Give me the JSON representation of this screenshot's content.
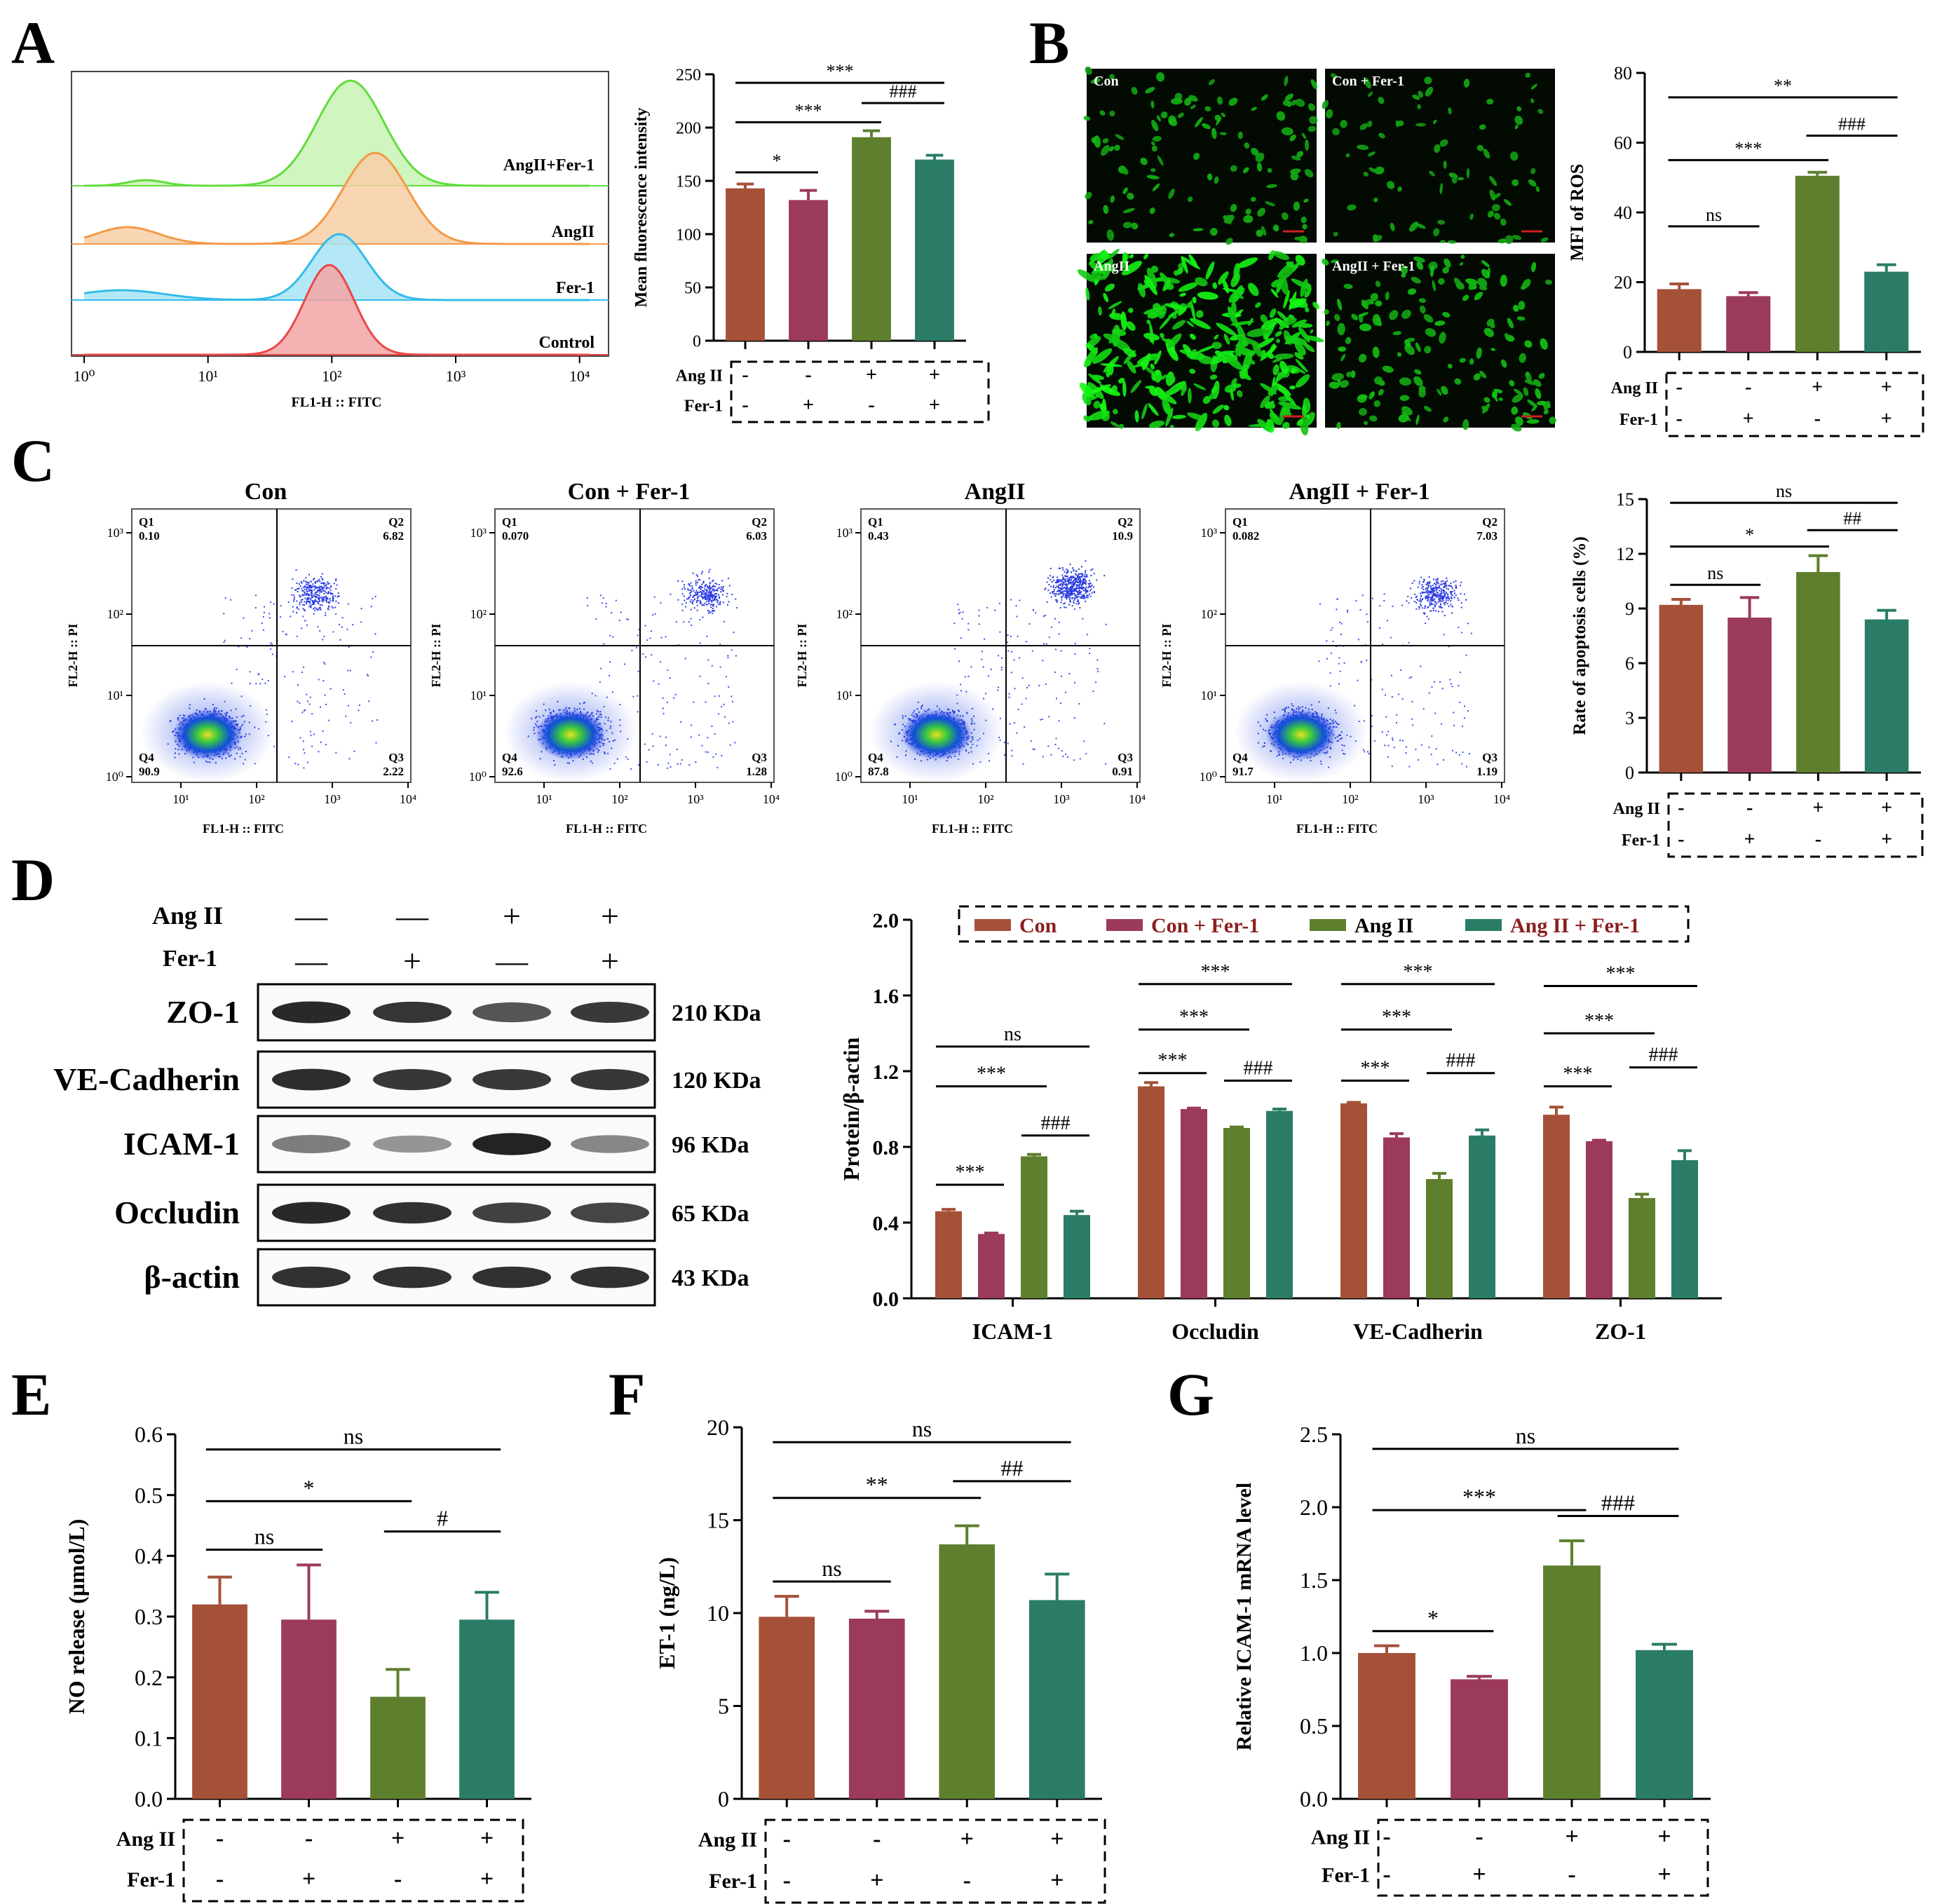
{
  "panels": {
    "A": "A",
    "B": "B",
    "C": "C",
    "D": "D",
    "E": "E",
    "F": "F",
    "G": "G"
  },
  "colors": {
    "con": "#a55138",
    "fer": "#9c3a5c",
    "ang": "#5e7f2e",
    "angfer": "#2a7c66"
  },
  "conditions": {
    "row1_label": "Ang II",
    "row2_label": "Fer-1",
    "angII": [
      "-",
      "-",
      "+",
      "+"
    ],
    "fer1": [
      "-",
      "+",
      "-",
      "+"
    ]
  },
  "panelA": {
    "histograms": [
      "AngII+Fer-1",
      "AngII",
      "Fer-1",
      "Control"
    ],
    "hist_colors": [
      "#62dc3e",
      "#f29a48",
      "#33bbe8",
      "#ea4848"
    ],
    "xaxis_label": "FL1-H :: FITC",
    "x_ticks": [
      "10⁰",
      "10¹",
      "10²",
      "10³",
      "10⁴"
    ]
  },
  "panelB": {
    "image_labels": [
      "Con",
      "Con + Fer-1",
      "AngII",
      "AngII + Fer-1"
    ]
  },
  "panelC": {
    "titles": [
      "Con",
      "Con + Fer-1",
      "AngII",
      "AngII + Fer-1"
    ],
    "quadrants": [
      {
        "q1": "0.10",
        "q2": "6.82",
        "q3": "2.22",
        "q4": "90.9"
      },
      {
        "q1": "0.070",
        "q2": "6.03",
        "q3": "1.28",
        "q4": "92.6"
      },
      {
        "q1": "0.43",
        "q2": "10.9",
        "q3": "0.91",
        "q4": "87.8"
      },
      {
        "q1": "0.082",
        "q2": "7.03",
        "q3": "1.19",
        "q4": "91.7"
      }
    ],
    "qnames": [
      "Q1",
      "Q2",
      "Q3",
      "Q4"
    ],
    "xaxis_label": "FL1-H :: FITC",
    "yaxis_label": "FL2-H :: PI",
    "x_ticks": [
      "10¹",
      "10²",
      "10³",
      "10⁴"
    ],
    "y_ticks": [
      "10⁰",
      "10¹",
      "10²",
      "10³"
    ]
  },
  "panelD_blot": {
    "lanes_angII": [
      "—",
      "—",
      "+",
      "+"
    ],
    "lanes_fer1": [
      "—",
      "+",
      "—",
      "+"
    ],
    "row_labels": [
      "Ang II",
      "Fer-1"
    ],
    "proteins": [
      "ZO-1",
      "VE-Cadherin",
      "ICAM-1",
      "Occludin",
      "β-actin"
    ],
    "sizes": [
      "210 KDa",
      "120 KDa",
      "96 KDa",
      "65 KDa",
      "43 KDa"
    ],
    "band_intensity": [
      [
        0.92,
        0.86,
        0.7,
        0.84
      ],
      [
        0.9,
        0.85,
        0.84,
        0.85
      ],
      [
        0.5,
        0.38,
        0.95,
        0.45
      ],
      [
        0.92,
        0.88,
        0.8,
        0.78
      ],
      [
        0.88,
        0.88,
        0.88,
        0.88
      ]
    ]
  },
  "chart_data": [
    {
      "id": "A",
      "type": "bar",
      "ylabel": "Mean fluorescence intensity",
      "ylim": [
        0,
        250
      ],
      "yticks": [
        0,
        50,
        100,
        150,
        200,
        250
      ],
      "values": [
        143,
        132,
        191,
        170
      ],
      "errors": [
        4,
        9,
        6,
        4
      ],
      "sig": [
        {
          "from": 0,
          "to": 1,
          "label": "*",
          "y": 158
        },
        {
          "from": 0,
          "to": 2,
          "label": "***",
          "y": 205
        },
        {
          "from": 2,
          "to": 3,
          "label": "###",
          "y": 223
        },
        {
          "from": 0,
          "to": 3,
          "label": "***",
          "y": 242
        }
      ]
    },
    {
      "id": "B",
      "type": "bar",
      "ylabel": "MFI of ROS",
      "ylim": [
        0,
        80
      ],
      "yticks": [
        0,
        20,
        40,
        60,
        80
      ],
      "values": [
        18,
        16,
        50.5,
        23
      ],
      "errors": [
        1.5,
        1,
        1,
        2
      ],
      "sig": [
        {
          "from": 0,
          "to": 1,
          "label": "ns",
          "y": 36
        },
        {
          "from": 0,
          "to": 2,
          "label": "***",
          "y": 55
        },
        {
          "from": 2,
          "to": 3,
          "label": "###",
          "y": 62
        },
        {
          "from": 0,
          "to": 3,
          "label": "**",
          "y": 73
        }
      ]
    },
    {
      "id": "C",
      "type": "bar",
      "ylabel": "Rate of apoptosis cells (%)",
      "ylim": [
        0,
        15
      ],
      "yticks": [
        0,
        3,
        6,
        9,
        12,
        15
      ],
      "values": [
        9.2,
        8.5,
        11,
        8.4
      ],
      "errors": [
        0.3,
        1.1,
        0.9,
        0.5
      ],
      "sig": [
        {
          "from": 0,
          "to": 1,
          "label": "ns",
          "y": 10.3
        },
        {
          "from": 0,
          "to": 2,
          "label": "*",
          "y": 12.4
        },
        {
          "from": 2,
          "to": 3,
          "label": "##",
          "y": 13.3
        },
        {
          "from": 0,
          "to": 3,
          "label": "ns",
          "y": 14.8
        }
      ]
    },
    {
      "id": "D",
      "type": "grouped-bar",
      "ylabel": "Protein/β-actin",
      "ylim": [
        0,
        2.0
      ],
      "yticks": [
        "0.0",
        "0.4",
        "0.8",
        "1.2",
        "1.6",
        "2.0"
      ],
      "categories": [
        "ICAM-1",
        "Occludin",
        "VE-Cadherin",
        "ZO-1"
      ],
      "series": [
        {
          "name": "Con",
          "values": [
            0.46,
            1.12,
            1.03,
            0.97
          ],
          "errors": [
            0.01,
            0.02,
            0.005,
            0.04
          ]
        },
        {
          "name": "Con + Fer-1",
          "values": [
            0.34,
            1.0,
            0.85,
            0.83
          ],
          "errors": [
            0.005,
            0.005,
            0.02,
            0.005
          ]
        },
        {
          "name": "Ang II",
          "values": [
            0.75,
            0.9,
            0.63,
            0.53
          ],
          "errors": [
            0.01,
            0.005,
            0.03,
            0.02
          ]
        },
        {
          "name": "Ang II + Fer-1",
          "values": [
            0.44,
            0.99,
            0.86,
            0.73
          ],
          "errors": [
            0.02,
            0.01,
            0.03,
            0.05
          ]
        }
      ],
      "sig": [
        {
          "cat": 0,
          "from": 0,
          "to": 1,
          "label": "***",
          "y": 0.6
        },
        {
          "cat": 0,
          "from": 0,
          "to": 2,
          "label": "***",
          "y": 1.12
        },
        {
          "cat": 0,
          "from": 2,
          "to": 3,
          "label": "###",
          "y": 0.86
        },
        {
          "cat": 0,
          "from": 0,
          "to": 3,
          "label": "ns",
          "y": 1.33
        },
        {
          "cat": 1,
          "from": 0,
          "to": 1,
          "label": "***",
          "y": 1.19
        },
        {
          "cat": 1,
          "from": 0,
          "to": 2,
          "label": "***",
          "y": 1.42
        },
        {
          "cat": 1,
          "from": 2,
          "to": 3,
          "label": "###",
          "y": 1.15
        },
        {
          "cat": 1,
          "from": 0,
          "to": 3,
          "label": "***",
          "y": 1.66
        },
        {
          "cat": 2,
          "from": 0,
          "to": 1,
          "label": "***",
          "y": 1.15
        },
        {
          "cat": 2,
          "from": 0,
          "to": 2,
          "label": "***",
          "y": 1.42
        },
        {
          "cat": 2,
          "from": 2,
          "to": 3,
          "label": "###",
          "y": 1.19
        },
        {
          "cat": 2,
          "from": 0,
          "to": 3,
          "label": "***",
          "y": 1.66
        },
        {
          "cat": 3,
          "from": 0,
          "to": 1,
          "label": "***",
          "y": 1.12
        },
        {
          "cat": 3,
          "from": 0,
          "to": 2,
          "label": "***",
          "y": 1.4
        },
        {
          "cat": 3,
          "from": 2,
          "to": 3,
          "label": "###",
          "y": 1.22
        },
        {
          "cat": 3,
          "from": 0,
          "to": 3,
          "label": "***",
          "y": 1.65
        }
      ]
    },
    {
      "id": "E",
      "type": "bar",
      "ylabel": "NO release (μmol/L)",
      "ylim": [
        0,
        0.6
      ],
      "yticks": [
        "0.0",
        "0.1",
        "0.2",
        "0.3",
        "0.4",
        "0.5",
        "0.6"
      ],
      "values": [
        0.32,
        0.295,
        0.168,
        0.295
      ],
      "errors": [
        0.045,
        0.09,
        0.045,
        0.045
      ],
      "sig": [
        {
          "from": 0,
          "to": 1,
          "label": "ns",
          "y": 0.41
        },
        {
          "from": 0,
          "to": 2,
          "label": "*",
          "y": 0.49
        },
        {
          "from": 2,
          "to": 3,
          "label": "#",
          "y": 0.44
        },
        {
          "from": 0,
          "to": 3,
          "label": "ns",
          "y": 0.575
        }
      ]
    },
    {
      "id": "F",
      "type": "bar",
      "ylabel": "ET-1 (ng/L)",
      "ylim": [
        0,
        20
      ],
      "yticks": [
        0,
        5,
        10,
        15,
        20
      ],
      "values": [
        9.8,
        9.7,
        13.7,
        10.7
      ],
      "errors": [
        1.1,
        0.4,
        1.0,
        1.4
      ],
      "sig": [
        {
          "from": 0,
          "to": 1,
          "label": "ns",
          "y": 11.7
        },
        {
          "from": 0,
          "to": 2,
          "label": "**",
          "y": 16.2
        },
        {
          "from": 2,
          "to": 3,
          "label": "##",
          "y": 17.1
        },
        {
          "from": 0,
          "to": 3,
          "label": "ns",
          "y": 19.2
        }
      ]
    },
    {
      "id": "G",
      "type": "bar",
      "ylabel": "Relative ICAM-1 mRNA level",
      "ylim": [
        0,
        2.5
      ],
      "yticks": [
        "0.0",
        "0.5",
        "1.0",
        "1.5",
        "2.0",
        "2.5"
      ],
      "values": [
        1.0,
        0.82,
        1.6,
        1.02
      ],
      "errors": [
        0.05,
        0.02,
        0.17,
        0.04
      ],
      "sig": [
        {
          "from": 0,
          "to": 1,
          "label": "*",
          "y": 1.15
        },
        {
          "from": 0,
          "to": 2,
          "label": "***",
          "y": 1.98
        },
        {
          "from": 2,
          "to": 3,
          "label": "###",
          "y": 1.94
        },
        {
          "from": 0,
          "to": 3,
          "label": "ns",
          "y": 2.4
        }
      ]
    }
  ]
}
